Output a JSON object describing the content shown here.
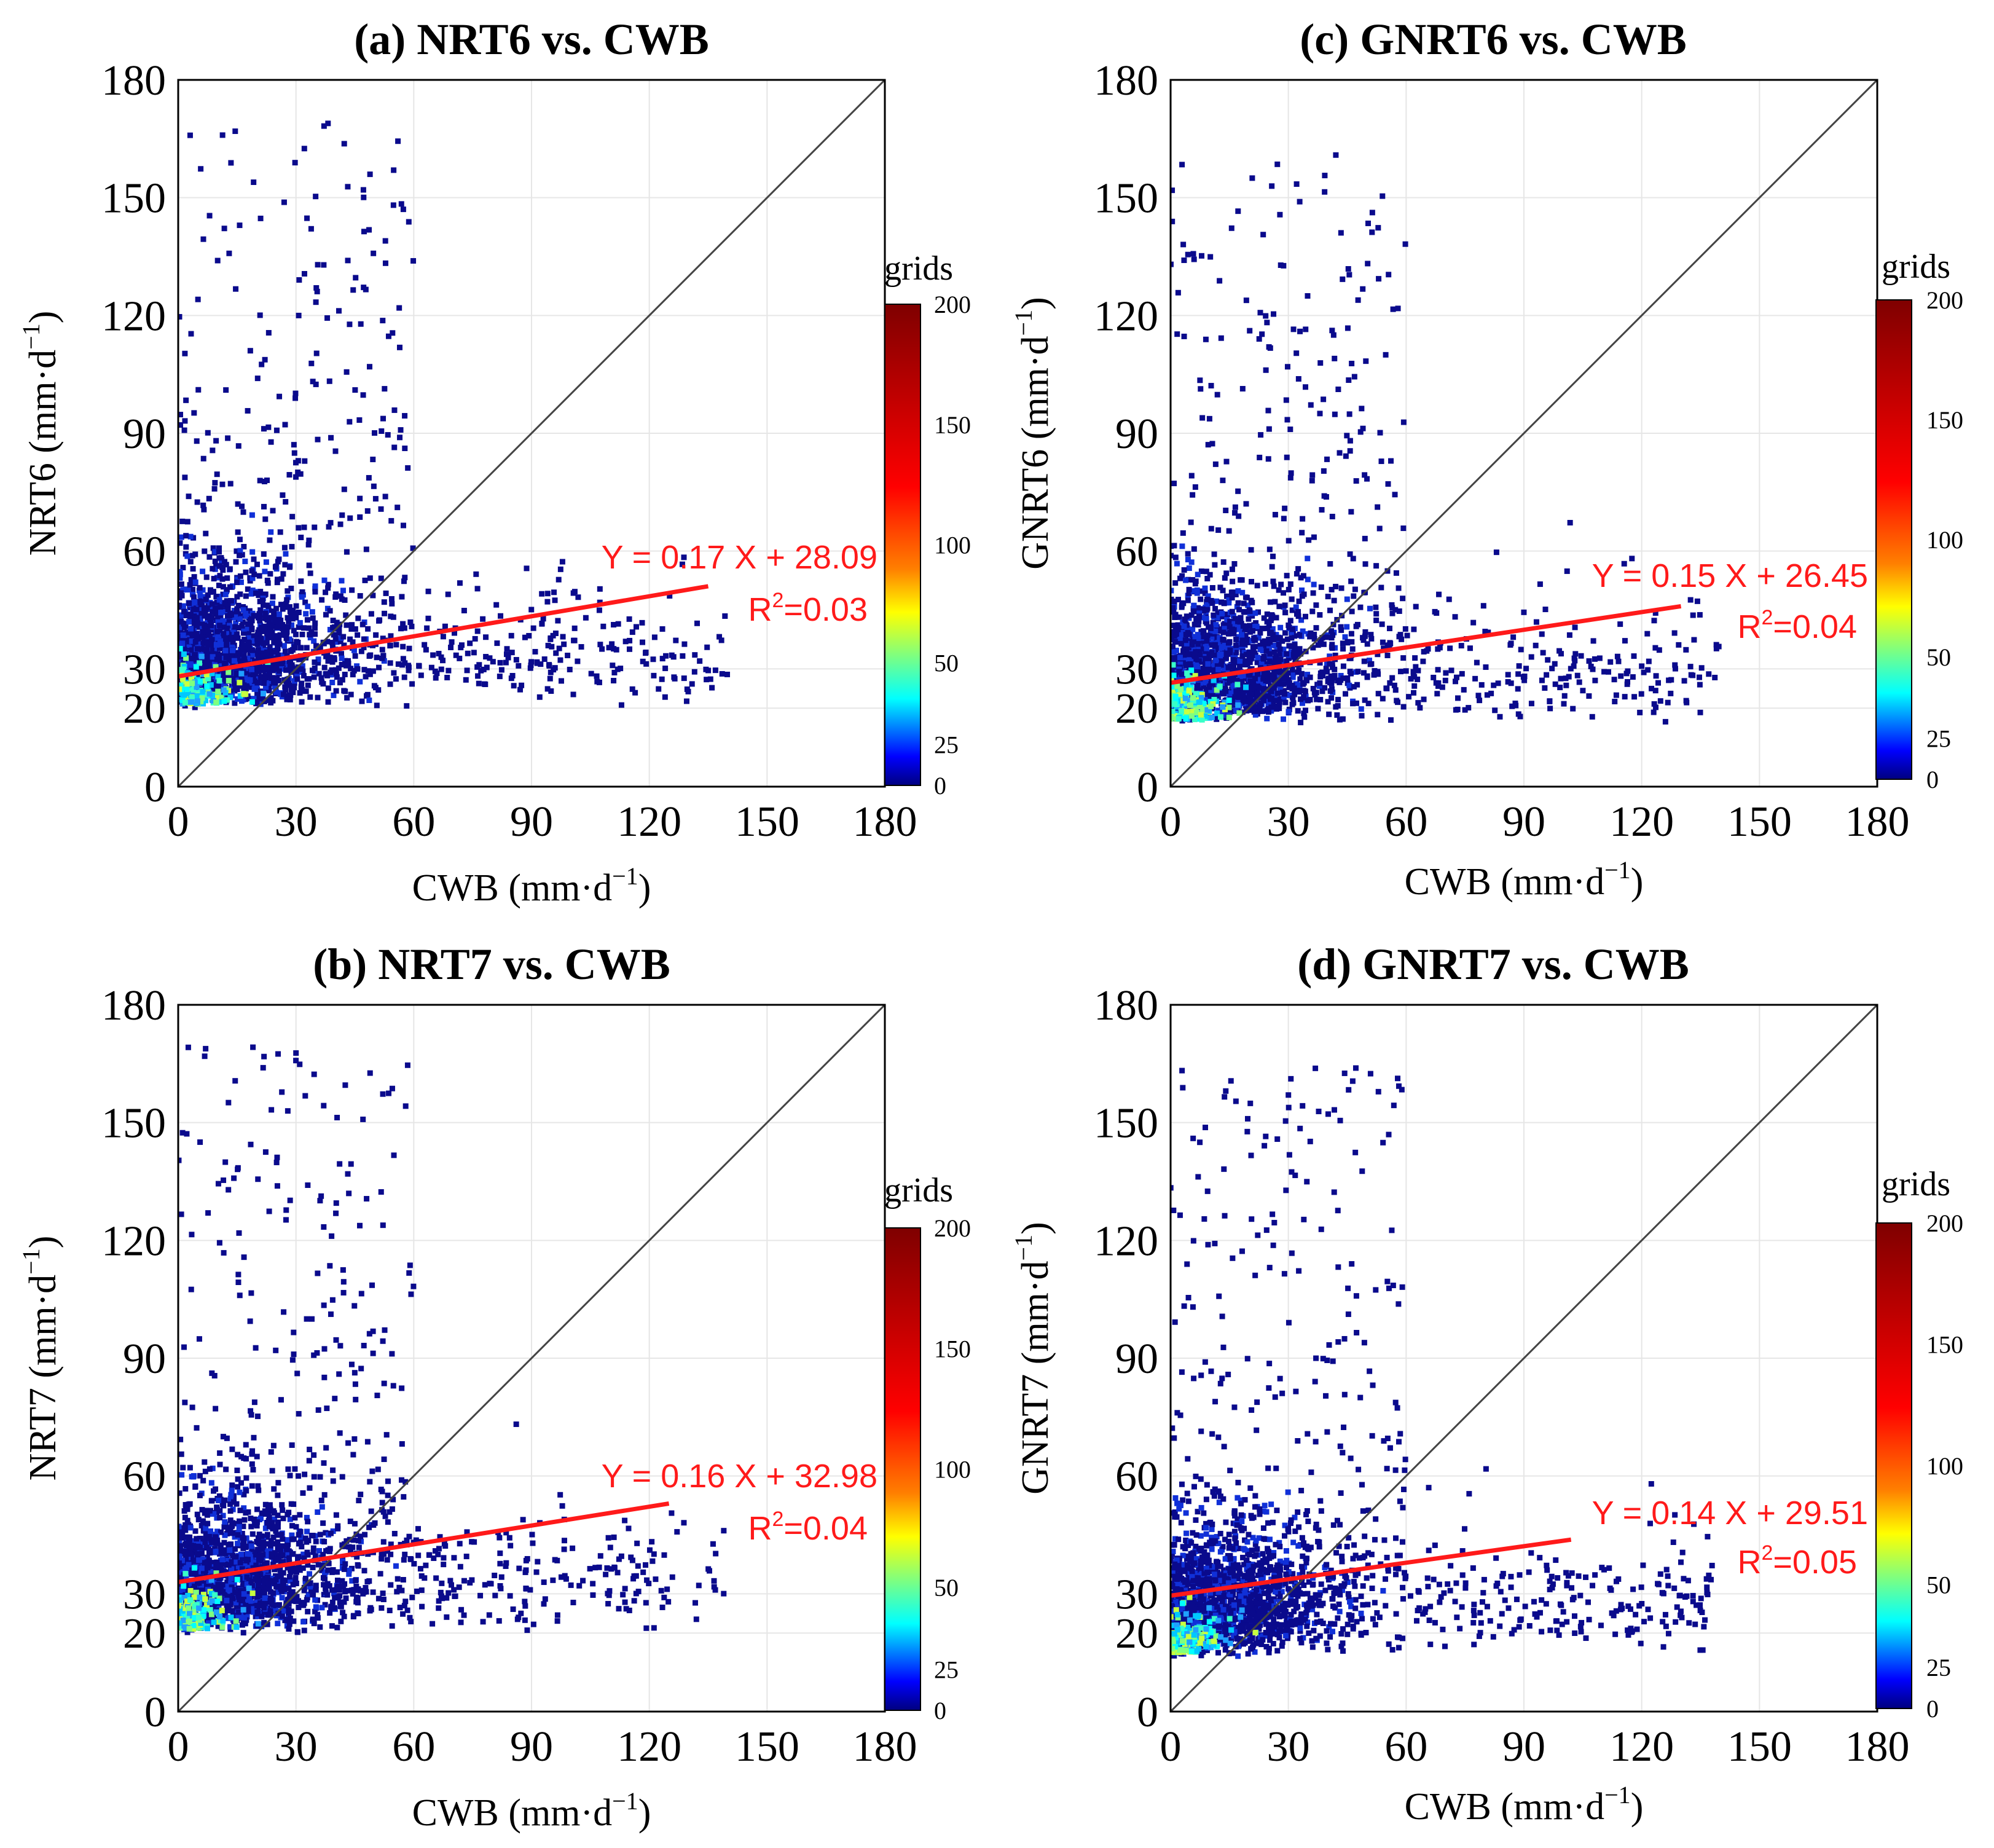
{
  "figure": {
    "panels": [
      {
        "id": "a",
        "ylabel": "NRT6"
      },
      {
        "id": "b",
        "ylabel": "NRT7"
      },
      {
        "id": "c",
        "ylabel": "GNRT6"
      },
      {
        "id": "d",
        "ylabel": "GNRT7"
      }
    ]
  },
  "colors": {
    "fit_line": "#ff1a1a",
    "diagonal": "#444444",
    "grid": "#e6e6e6",
    "colormap": [
      "#00007f",
      "#0000ff",
      "#007fff",
      "#00ffff",
      "#7fff7f",
      "#ffff00",
      "#ff7f00",
      "#ff0000",
      "#7f0000"
    ]
  },
  "chart_data": [
    {
      "type": "scatter",
      "id": "a",
      "title": "(a) NRT6 vs. CWB",
      "xlabel": "CWB (mm·d",
      "ylabel": "NRT6 (mm·d",
      "unit_exp": "−1",
      "xlim": [
        0,
        180
      ],
      "ylim": [
        0,
        180
      ],
      "xticks": [
        0,
        30,
        60,
        90,
        120,
        150,
        180
      ],
      "yticks": [
        0,
        20,
        30,
        60,
        90,
        120,
        150,
        180
      ],
      "fit": {
        "slope": 0.17,
        "intercept": 28.09,
        "x_end": 135,
        "equation": "Y = 0.17 X + 28.09",
        "r2_label": "R",
        "r2_sup": "2",
        "r2_value": "=0.03"
      },
      "colorbar": {
        "label": "grids",
        "ticks": [
          0,
          25,
          50,
          100,
          150,
          200
        ]
      },
      "cloud": {
        "y_min": 20,
        "seed": 11
      }
    },
    {
      "type": "scatter",
      "id": "b",
      "title": "(b) NRT7 vs. CWB",
      "xlabel": "CWB (mm·d",
      "ylabel": "NRT7 (mm·d",
      "unit_exp": "−1",
      "xlim": [
        0,
        180
      ],
      "ylim": [
        0,
        180
      ],
      "xticks": [
        0,
        30,
        60,
        90,
        120,
        150,
        180
      ],
      "yticks": [
        0,
        20,
        30,
        60,
        90,
        120,
        150,
        180
      ],
      "fit": {
        "slope": 0.16,
        "intercept": 32.98,
        "x_end": 125,
        "equation": "Y = 0.16 X + 32.98",
        "r2_label": "R",
        "r2_sup": "2",
        "r2_value": "=0.04"
      },
      "colorbar": {
        "label": "grids",
        "ticks": [
          0,
          25,
          50,
          100,
          150,
          200
        ]
      },
      "cloud": {
        "y_min": 20,
        "seed": 23
      }
    },
    {
      "type": "scatter",
      "id": "c",
      "title": "(c) GNRT6 vs. CWB",
      "xlabel": "CWB (mm·d",
      "ylabel": "GNRT6 (mm·d",
      "unit_exp": "−1",
      "xlim": [
        0,
        180
      ],
      "ylim": [
        0,
        180
      ],
      "xticks": [
        0,
        30,
        60,
        90,
        120,
        150,
        180
      ],
      "yticks": [
        0,
        20,
        30,
        60,
        90,
        120,
        150,
        180
      ],
      "fit": {
        "slope": 0.15,
        "intercept": 26.45,
        "x_end": 130,
        "equation": "Y = 0.15 X + 26.45",
        "r2_label": "R",
        "r2_sup": "2",
        "r2_value": "=0.04"
      },
      "colorbar": {
        "label": "grids",
        "ticks": [
          0,
          25,
          50,
          100,
          150,
          200
        ]
      },
      "cloud": {
        "y_min": 16,
        "seed": 37
      }
    },
    {
      "type": "scatter",
      "id": "d",
      "title": "(d) GNRT7 vs. CWB",
      "xlabel": "CWB (mm·d",
      "ylabel": "GNRT7 (mm·d",
      "unit_exp": "−1",
      "xlim": [
        0,
        180
      ],
      "ylim": [
        0,
        180
      ],
      "xticks": [
        0,
        30,
        60,
        90,
        120,
        150,
        180
      ],
      "yticks": [
        0,
        20,
        30,
        60,
        90,
        120,
        150,
        180
      ],
      "fit": {
        "slope": 0.14,
        "intercept": 29.51,
        "x_end": 102,
        "equation": "Y = 0.14 X + 29.51",
        "r2_label": "R",
        "r2_sup": "2",
        "r2_value": "=0.05"
      },
      "colorbar": {
        "label": "grids",
        "ticks": [
          0,
          25,
          50,
          100,
          150,
          200
        ]
      },
      "cloud": {
        "y_min": 14,
        "seed": 53
      }
    }
  ]
}
